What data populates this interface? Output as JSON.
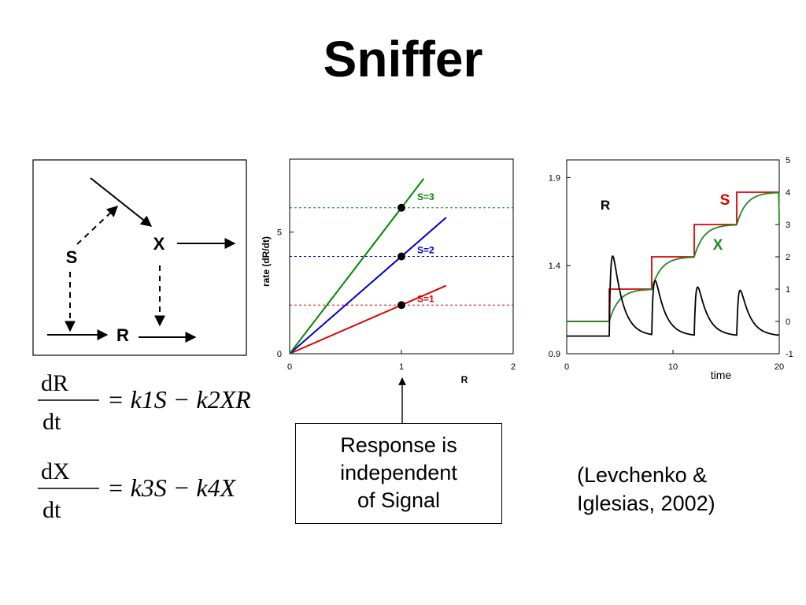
{
  "slide": {
    "title": "Sniffer",
    "callout": [
      "Response is",
      "independent",
      "of Signal"
    ],
    "citation": [
      "(Levchenko &",
      "Iglesias, 2002)"
    ]
  },
  "diagram": {
    "nodes": {
      "S": "S",
      "X": "X",
      "R": "R"
    }
  },
  "equations": [
    {
      "lhs_num": "dR",
      "lhs_den": "dt",
      "rhs": "= k1S − k2XR"
    },
    {
      "lhs_num": "dX",
      "lhs_den": "dt",
      "rhs": "= k3S − k4X"
    }
  ],
  "chart_data": [
    {
      "type": "line",
      "xlabel": "R",
      "ylabel": "rate (dR/dt)",
      "xlim": [
        0,
        2
      ],
      "ylim": [
        0,
        8
      ],
      "x_ticks": [
        "0",
        "1",
        "2"
      ],
      "y_ticks": [
        "0",
        "5"
      ],
      "series": [
        {
          "name": "S=1",
          "color": "#dd0000",
          "x": [
            0,
            1.4
          ],
          "y": [
            0,
            2.8
          ],
          "level": 2
        },
        {
          "name": "S=2",
          "color": "#0000cc",
          "x": [
            0,
            1.4
          ],
          "y": [
            0,
            5.6
          ],
          "level": 4
        },
        {
          "name": "S=3",
          "color": "#008800",
          "x": [
            0,
            1.2
          ],
          "y": [
            0,
            7.2
          ],
          "level": 6
        }
      ],
      "points": [
        {
          "x": 1,
          "y": 2
        },
        {
          "x": 1,
          "y": 4
        },
        {
          "x": 1,
          "y": 6
        }
      ]
    },
    {
      "type": "line",
      "xlabel": "time",
      "xlim": [
        0,
        20
      ],
      "ylim_left": [
        0.9,
        2.0
      ],
      "ylim_right": [
        -1,
        5
      ],
      "x_ticks": [
        "0",
        "10",
        "20"
      ],
      "y_ticks_left": [
        "0.9",
        "1.4",
        "1.9"
      ],
      "y_ticks_right": [
        "-1",
        "0",
        "1",
        "2",
        "3",
        "4",
        "5"
      ],
      "series": [
        {
          "name": "R",
          "color": "#000000",
          "axis": "left"
        },
        {
          "name": "S",
          "color": "#dd0000",
          "axis": "right",
          "x": [
            0,
            4,
            4,
            8,
            8,
            12,
            12,
            16,
            16,
            20
          ],
          "y": [
            0,
            0,
            1,
            1,
            2,
            2,
            3,
            3,
            4,
            4
          ]
        },
        {
          "name": "X",
          "color": "#228822",
          "axis": "right"
        }
      ]
    }
  ]
}
